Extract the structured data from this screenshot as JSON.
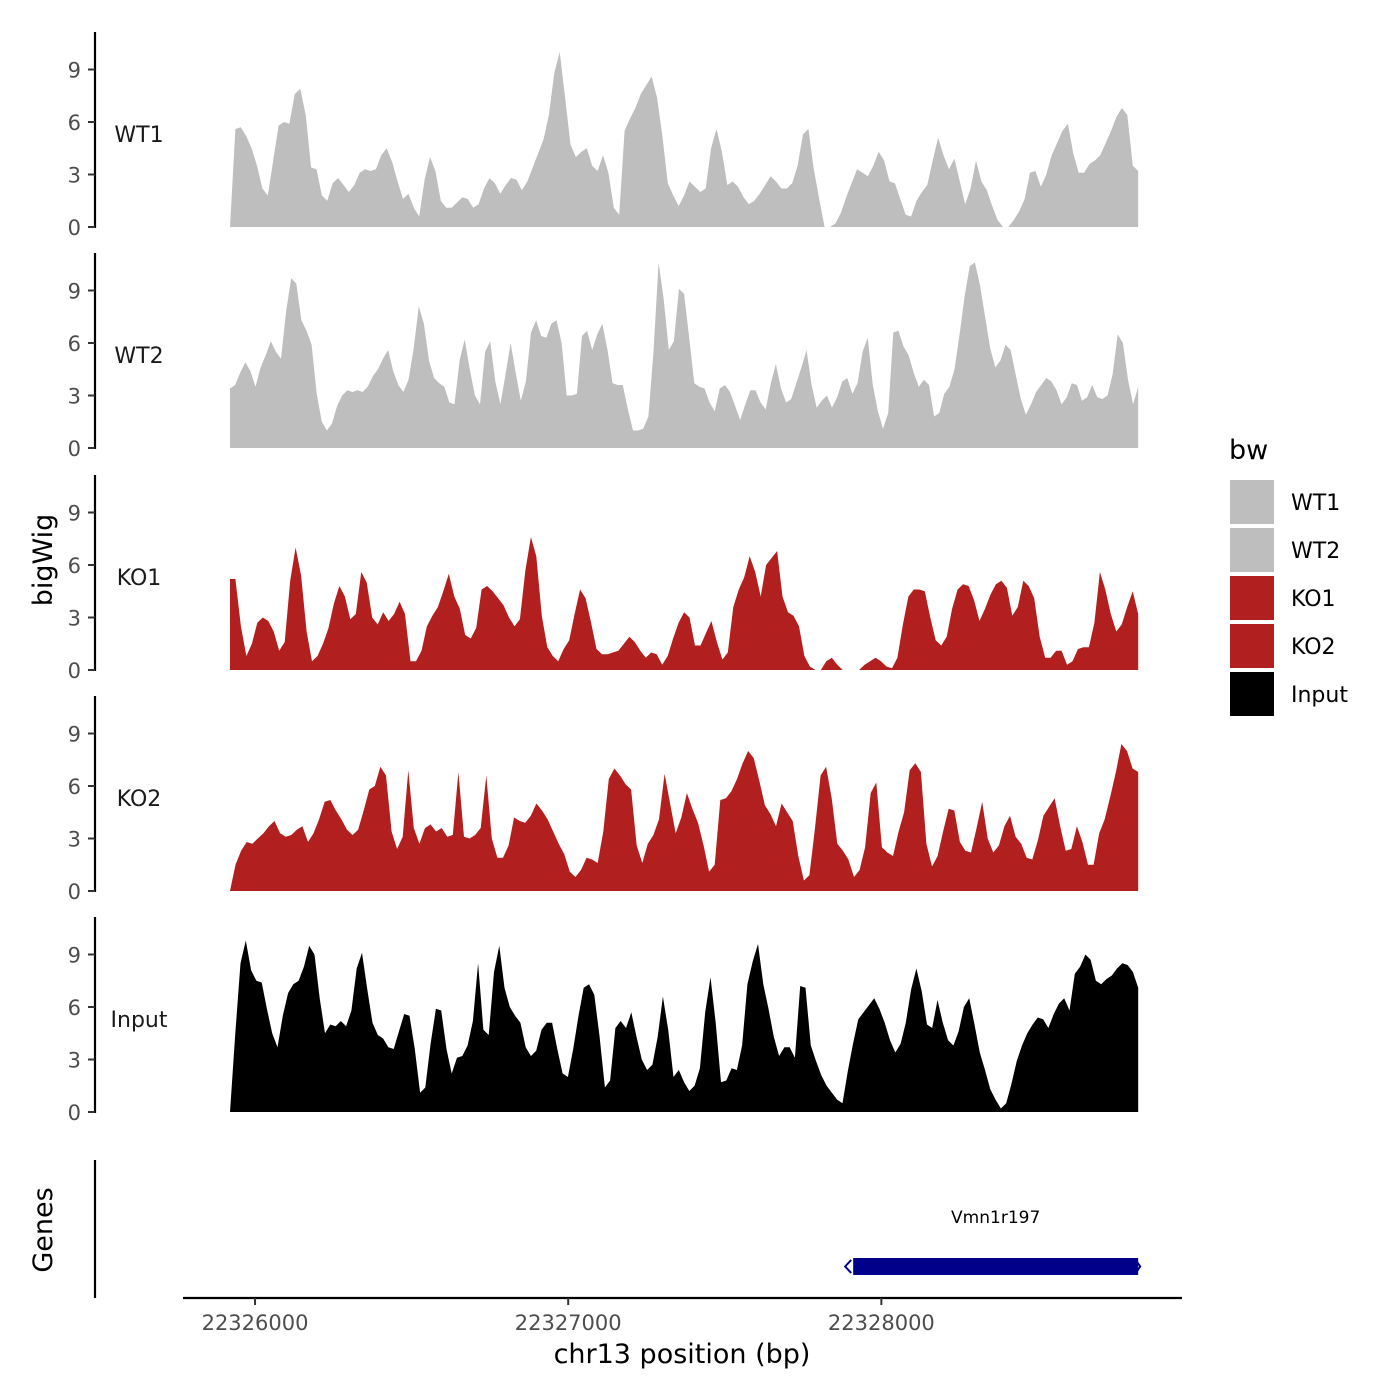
{
  "chart_data": {
    "type": "area",
    "chromosome": "chr13",
    "xlabel": "chr13 position (bp)",
    "ylabel": "bigWig",
    "genes_label": "Genes",
    "xlim": [
      22325770,
      22328960
    ],
    "data_range": [
      22325920,
      22328820
    ],
    "x_ticks": [
      22326000,
      22327000,
      22328000
    ],
    "x_tick_labels": [
      "22326000",
      "22327000",
      "22328000"
    ],
    "y_ticks": [
      0,
      3,
      6,
      9
    ],
    "y_tick_labels": [
      "0",
      "3",
      "6",
      "9"
    ],
    "ylim": [
      0,
      11.2
    ],
    "legend": {
      "title": "bw",
      "entries": [
        {
          "label": "WT1",
          "color": "#bebebe"
        },
        {
          "label": "WT2",
          "color": "#bebebe"
        },
        {
          "label": "KO1",
          "color": "#b21f1f"
        },
        {
          "label": "KO2",
          "color": "#b21f1f"
        },
        {
          "label": "Input",
          "color": "#000000"
        }
      ]
    },
    "series": [
      {
        "name": "WT1",
        "color": "#bebebe",
        "values": [
          0,
          5.6,
          5.7,
          5.2,
          4.5,
          3.5,
          2.2,
          1.8,
          3.8,
          5.8,
          6,
          5.9,
          7.6,
          7.9,
          6.4,
          3.4,
          3.3,
          1.8,
          1.5,
          2.5,
          2.8,
          2.4,
          2,
          2.4,
          3.1,
          3.3,
          3.2,
          3.3,
          4.1,
          4.5,
          3.7,
          2.6,
          1.6,
          1.9,
          1.1,
          0.6,
          2.7,
          4,
          3.2,
          1.5,
          1.1,
          1.1,
          1.4,
          1.7,
          1.6,
          1.1,
          1.3,
          2.2,
          2.8,
          2.5,
          1.9,
          2.4,
          2.8,
          2.7,
          2.1,
          2.6,
          3.4,
          4.2,
          5,
          6.4,
          8.8,
          10,
          7.4,
          4.7,
          4,
          4.3,
          4.5,
          3.5,
          3.2,
          4.1,
          3.1,
          1.1,
          0.7,
          5.5,
          6.2,
          6.8,
          7.6,
          8.1,
          8.6,
          7.4,
          5.2,
          2.5,
          1.8,
          1.2,
          1.8,
          2.6,
          2.3,
          2,
          2.2,
          4.5,
          5.6,
          4.3,
          2.4,
          2.6,
          2.3,
          1.7,
          1.3,
          1.5,
          1.9,
          2.4,
          2.9,
          2.6,
          2.2,
          2.2,
          2.5,
          3.5,
          5.3,
          5.6,
          3.3,
          1.6,
          0,
          0,
          0.2,
          0.8,
          1.7,
          2.5,
          3.3,
          3.1,
          2.9,
          3.5,
          4.3,
          3.8,
          2.6,
          2.5,
          1.6,
          0.7,
          0.6,
          1.5,
          2,
          2.4,
          3.8,
          5.1,
          4.1,
          3.3,
          3.9,
          2.6,
          1.3,
          2.2,
          3.8,
          2.6,
          2.1,
          1.2,
          0.4,
          0,
          0,
          0.4,
          0.9,
          1.6,
          3.1,
          3.2,
          2.3,
          3,
          4.1,
          4.8,
          5.5,
          5.9,
          4.2,
          3.1,
          3.1,
          3.6,
          3.8,
          4.1,
          4.8,
          5.5,
          6.3,
          6.8,
          6.4,
          3.5,
          3.2
        ]
      },
      {
        "name": "WT2",
        "color": "#bebebe",
        "values": [
          3.4,
          3.6,
          4.3,
          4.9,
          4.4,
          3.5,
          4.6,
          5.3,
          6.1,
          5.5,
          5.1,
          7.8,
          9.7,
          9.4,
          7.3,
          6.7,
          5.9,
          3.1,
          1.5,
          1,
          1.4,
          2.4,
          3,
          3.3,
          3.2,
          3.3,
          3.2,
          3.5,
          4.1,
          4.5,
          5.1,
          5.6,
          4.4,
          3.6,
          3.2,
          3.9,
          5.7,
          8.1,
          7.1,
          5,
          4,
          3.7,
          3.5,
          2.6,
          2.5,
          5,
          6.2,
          4.5,
          3,
          2.5,
          5.5,
          6.1,
          3.8,
          2.5,
          4.2,
          6,
          4.3,
          2.7,
          3.8,
          6.6,
          7.3,
          6.4,
          6.3,
          7.1,
          7.3,
          6,
          3,
          3,
          3.1,
          6.4,
          6.7,
          5.6,
          6.5,
          7.1,
          5.6,
          3.7,
          3.6,
          3.6,
          2.2,
          1,
          1,
          1.1,
          1.8,
          5.5,
          10.6,
          8.5,
          5.6,
          6.1,
          9.1,
          8.8,
          6.3,
          3.7,
          3.5,
          3.4,
          2.6,
          2.1,
          3.4,
          3.6,
          3.2,
          2.4,
          1.6,
          2.5,
          3.3,
          3.3,
          2.6,
          2.2,
          3.7,
          4.8,
          3.4,
          2.6,
          2.8,
          3.7,
          4.6,
          5.6,
          3.6,
          2.3,
          2.7,
          3,
          2.3,
          2.9,
          3.8,
          4,
          3.1,
          3.7,
          5.5,
          6.3,
          3.6,
          2.1,
          1.1,
          2,
          6.6,
          6.7,
          5.8,
          5.3,
          4.3,
          3.5,
          3.9,
          3.6,
          1.8,
          2,
          3.1,
          3.5,
          4.5,
          6.5,
          8.7,
          10.4,
          10.6,
          9.3,
          7.5,
          5.7,
          4.6,
          5,
          5.9,
          5.6,
          4.2,
          2.8,
          1.9,
          2.5,
          3.2,
          3.6,
          4,
          3.8,
          3.3,
          2.5,
          2.9,
          3.7,
          3.6,
          2.7,
          2.9,
          3.6,
          2.9,
          2.8,
          3,
          4.2,
          6.5,
          6,
          3.9,
          2.5,
          3.5
        ]
      },
      {
        "name": "KO1",
        "color": "#b21f1f",
        "values": [
          5.2,
          5.2,
          2.5,
          0.8,
          1.5,
          2.7,
          3,
          2.8,
          2.2,
          1.1,
          1.6,
          5.1,
          7,
          5.4,
          2.2,
          0.5,
          0.8,
          1.5,
          2.4,
          3.8,
          4.8,
          4.2,
          2.9,
          3.2,
          5.6,
          5,
          3,
          2.6,
          3.3,
          2.8,
          3.2,
          3.9,
          3.2,
          0.5,
          0.5,
          1.1,
          2.5,
          3.1,
          3.6,
          4.5,
          5.5,
          4.2,
          3.5,
          2,
          1.8,
          2.4,
          4.6,
          4.8,
          4.5,
          4.1,
          3.7,
          3,
          2.5,
          2.9,
          5.7,
          7.6,
          6.5,
          3.1,
          1.3,
          0.8,
          0.5,
          1.2,
          1.7,
          3.2,
          4.6,
          4.1,
          2.7,
          1.2,
          0.9,
          0.9,
          1,
          1.1,
          1.5,
          1.9,
          1.6,
          1.1,
          0.7,
          1,
          0.9,
          0.3,
          0.8,
          1.8,
          2.7,
          3.3,
          3,
          1.4,
          1.4,
          2.1,
          2.8,
          1.6,
          0.6,
          1,
          3.6,
          4.6,
          5.3,
          6.5,
          5.6,
          4.2,
          6,
          6.4,
          6.8,
          4.2,
          3.3,
          3.1,
          2.5,
          0.8,
          0.2,
          0,
          0,
          0.5,
          0.7,
          0.3,
          0,
          0,
          0,
          0,
          0.3,
          0.5,
          0.7,
          0.5,
          0.2,
          0.1,
          0.7,
          2.6,
          4.2,
          4.6,
          4.6,
          4.5,
          3,
          1.7,
          1.4,
          1.9,
          3.5,
          4.6,
          4.9,
          4.8,
          4,
          2.8,
          3.5,
          4.3,
          4.9,
          5.1,
          4.7,
          3.1,
          3.6,
          5.1,
          4.8,
          4.1,
          1.9,
          0.7,
          0.7,
          1.1,
          1.1,
          0.3,
          0.5,
          1.2,
          1.3,
          1.3,
          2.7,
          5.6,
          4.6,
          3.2,
          2.2,
          2.6,
          3.6,
          4.5,
          3.2
        ]
      },
      {
        "name": "KO2",
        "color": "#b21f1f",
        "values": [
          0,
          1.5,
          2.3,
          2.8,
          2.7,
          3,
          3.3,
          3.7,
          4,
          3.3,
          3.1,
          3.2,
          3.5,
          3.7,
          2.8,
          3.3,
          4.1,
          5.1,
          5.2,
          4.6,
          4.1,
          3.5,
          3.2,
          3.5,
          4.6,
          5.8,
          6,
          7.1,
          6.6,
          3.4,
          2.4,
          3.1,
          6.9,
          3.6,
          2.7,
          3.6,
          3.8,
          3.4,
          3.6,
          3.1,
          3.2,
          6.8,
          3.1,
          3,
          3.2,
          3.6,
          6.6,
          3,
          1.9,
          1.9,
          2.6,
          4.2,
          4,
          3.9,
          4.3,
          5,
          4.6,
          4.1,
          3.4,
          2.7,
          2.1,
          1.1,
          0.8,
          1.2,
          1.9,
          1.8,
          1.6,
          3.4,
          6.4,
          7,
          6.6,
          6.1,
          5.8,
          2.6,
          1.6,
          2.7,
          3.2,
          4.1,
          6.7,
          5,
          3.3,
          4.2,
          5.6,
          4.7,
          3.9,
          2.6,
          1.1,
          1.5,
          5.2,
          5.3,
          5.7,
          6.4,
          7.3,
          8,
          7.6,
          6.3,
          4.9,
          4.4,
          3.7,
          5,
          4.5,
          4,
          2,
          0.6,
          0.9,
          3.6,
          6.6,
          7.1,
          5.3,
          2.7,
          2.3,
          1.8,
          0.8,
          1.2,
          2.5,
          5.6,
          6.2,
          2.5,
          2.2,
          2,
          3.4,
          4.5,
          6.9,
          7.3,
          6.8,
          2.7,
          1.4,
          2,
          3.4,
          4.7,
          4.6,
          2.8,
          2.3,
          2.2,
          3.6,
          5.1,
          3,
          2.2,
          2.6,
          3.7,
          4.3,
          3.1,
          2.7,
          1.9,
          1.8,
          2.9,
          4.3,
          4.8,
          5.3,
          3.7,
          2.3,
          2.4,
          3.7,
          2.8,
          1.5,
          1.5,
          3.3,
          4.1,
          5.4,
          6.8,
          8.4,
          8,
          7,
          6.8
        ]
      },
      {
        "name": "Input",
        "color": "#000000",
        "values": [
          0,
          4.5,
          8.5,
          9.8,
          8.1,
          7.5,
          7.4,
          5.9,
          4.5,
          3.7,
          5.5,
          6.8,
          7.3,
          7.5,
          8.3,
          9.5,
          9,
          6.5,
          4.5,
          5,
          4.9,
          5.2,
          4.9,
          5.8,
          8.2,
          9.1,
          7,
          5.1,
          4.4,
          4.2,
          3.7,
          3.6,
          4.6,
          5.6,
          5.5,
          3.6,
          1.1,
          1.4,
          3.9,
          5.9,
          5.8,
          3.6,
          2.2,
          3.1,
          3.2,
          3.8,
          5.2,
          8.5,
          4.7,
          4.4,
          8,
          9.5,
          7.1,
          6,
          5.5,
          5.1,
          3.7,
          3.2,
          3.5,
          4.7,
          5.1,
          5.1,
          3.6,
          2.2,
          2,
          3.6,
          5.5,
          7.1,
          7.3,
          6.7,
          4.3,
          1.4,
          1.8,
          4.8,
          5.2,
          4.8,
          5.7,
          4.3,
          3,
          2.4,
          2.7,
          4.3,
          6.6,
          4.7,
          2,
          2.4,
          1.7,
          1.2,
          1.5,
          2.5,
          5.7,
          7.7,
          5.1,
          1.7,
          1.8,
          2.5,
          2.4,
          3.8,
          7.3,
          8.6,
          9.6,
          7.3,
          5.9,
          4.3,
          3.2,
          3.7,
          3.7,
          3.1,
          7.2,
          7.1,
          3.8,
          2.9,
          2.1,
          1.5,
          1.1,
          0.7,
          0.5,
          2.3,
          3.9,
          5.3,
          5.7,
          6.1,
          6.5,
          5.9,
          5.1,
          4.1,
          3.4,
          3.9,
          5.1,
          7,
          8.2,
          6.9,
          5,
          4.8,
          6.4,
          5.1,
          4.1,
          3.8,
          4.6,
          6,
          6.5,
          5,
          3.4,
          2.4,
          1.3,
          0.7,
          0.2,
          0.5,
          1.6,
          2.9,
          3.8,
          4.5,
          5,
          5.4,
          5.3,
          4.8,
          5.6,
          6.2,
          6.5,
          5.8,
          7.9,
          8.3,
          9,
          8.7,
          7.5,
          7.3,
          7.6,
          7.8,
          8.2,
          8.5,
          8.4,
          8,
          7.1
        ]
      }
    ],
    "genes": [
      {
        "name": "Vmn1r197",
        "start": 22327910,
        "end": 22328820,
        "strand": "-",
        "color": "#00008b"
      }
    ]
  }
}
